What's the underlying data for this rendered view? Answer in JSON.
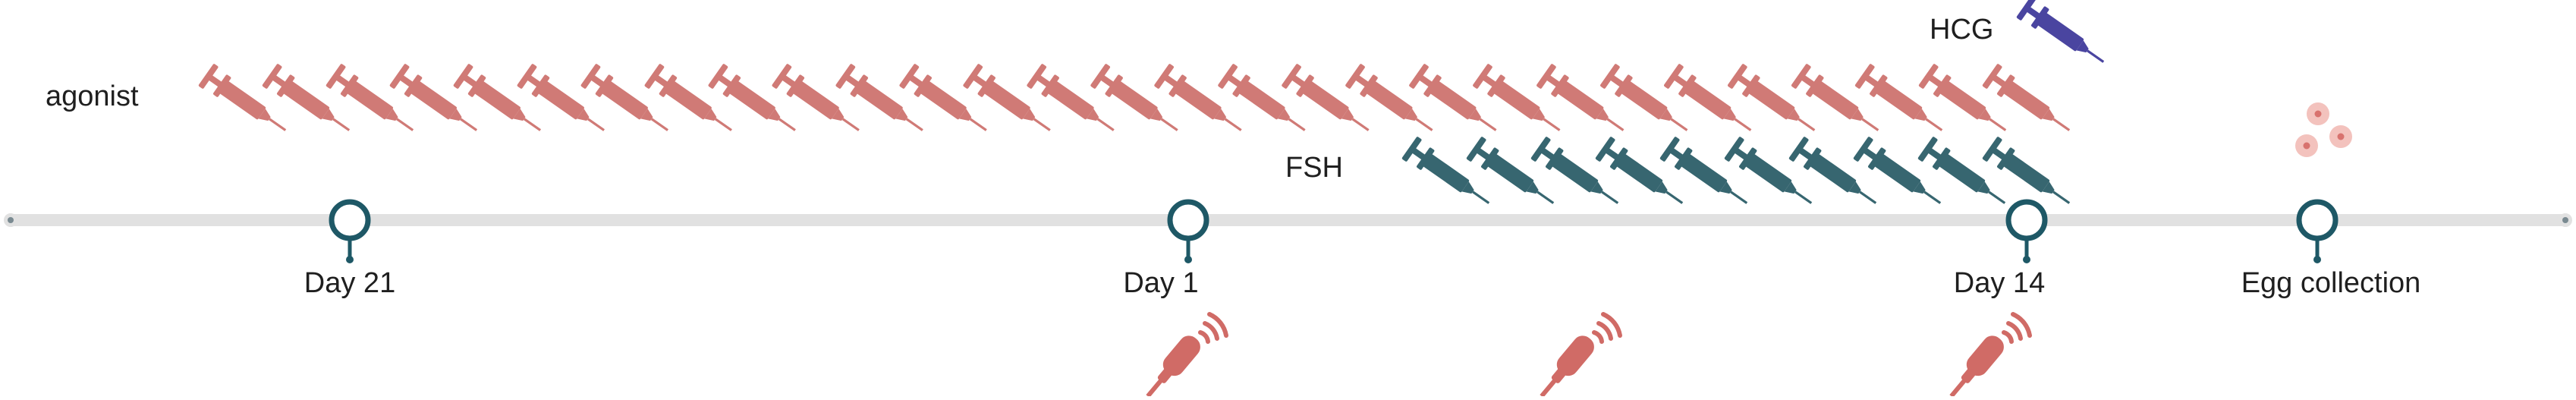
{
  "colors": {
    "agonist": "#d07a76",
    "fsh": "#376670",
    "hcg": "#4a45a0",
    "marker": "#1e5866",
    "track": "#e1e1e1",
    "egg_outer": "#f3c2bd",
    "egg_inner": "#d8726e",
    "ultrasound": "#d06b66"
  },
  "icons": {
    "injection": "syringe-icon",
    "ultrasound": "ultrasound-probe-icon",
    "egg": "egg-cells-icon",
    "milestone": "map-pin-icon"
  },
  "labels": {
    "agonist": "agonist",
    "fsh": "FSH",
    "hcg": "HCG"
  },
  "timeline": {
    "milestones": [
      {
        "label": "Day 21"
      },
      {
        "label": "Day 1"
      },
      {
        "label": "Day 14"
      },
      {
        "label": "Egg collection"
      }
    ]
  },
  "injections": {
    "agonist_count": 29,
    "fsh_count": 10,
    "hcg_count": 1
  },
  "ultrasound_scans": 3
}
